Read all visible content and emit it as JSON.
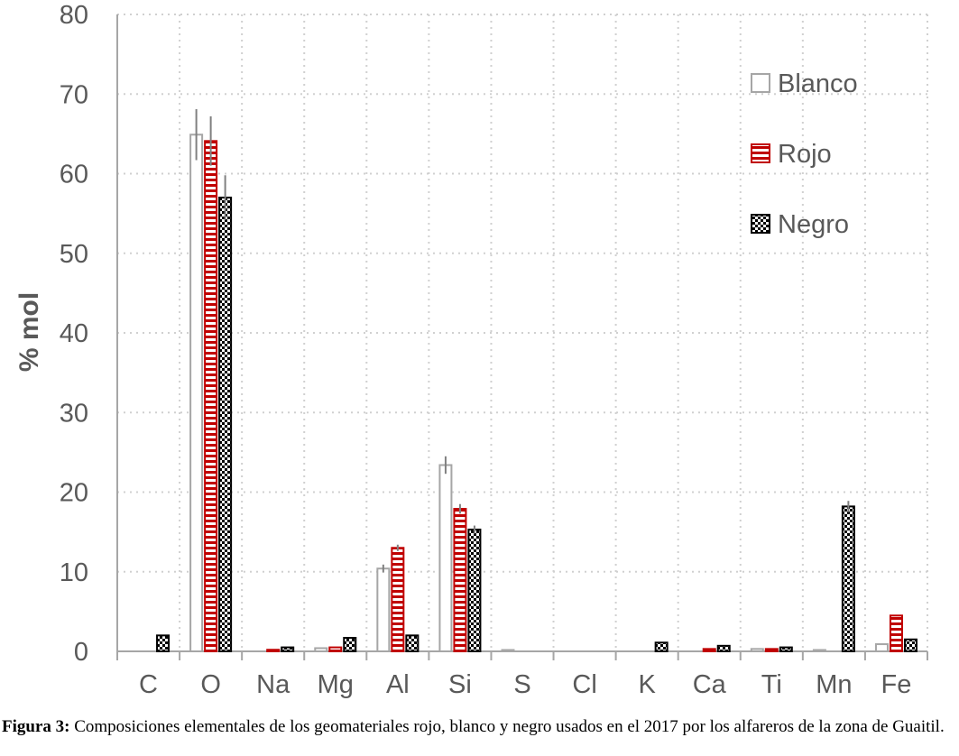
{
  "chart_data": {
    "type": "bar",
    "ylabel": "% mol",
    "xlabel": "",
    "ylim": [
      0,
      80
    ],
    "yticks": [
      0,
      10,
      20,
      30,
      40,
      50,
      60,
      70,
      80
    ],
    "grid": "dotted, horizontal and vertical",
    "legend_position": "top-right",
    "categories": [
      "C",
      "O",
      "Na",
      "Mg",
      "Al",
      "Si",
      "S",
      "Cl",
      "K",
      "Ca",
      "Ti",
      "Mn",
      "Fe"
    ],
    "series": [
      {
        "name": "Blanco",
        "color": "#a6a6a6",
        "pattern": "hollow",
        "values": [
          0,
          64.9,
          0,
          0.4,
          10.4,
          23.4,
          0.1,
          0,
          0,
          0,
          0.3,
          0.1,
          0.9
        ],
        "errors": [
          0,
          3.2,
          0,
          0,
          0.5,
          1.1,
          0,
          0,
          0,
          0,
          0,
          0,
          0
        ]
      },
      {
        "name": "Rojo",
        "color": "#c00000",
        "pattern": "horizontal-stripes",
        "values": [
          0,
          64.1,
          0.2,
          0.5,
          13.0,
          17.9,
          0,
          0,
          0,
          0.3,
          0.3,
          0,
          4.5
        ],
        "errors": [
          0,
          3.1,
          0,
          0,
          0.4,
          0.6,
          0,
          0,
          0,
          0,
          0,
          0,
          0
        ]
      },
      {
        "name": "Negro",
        "color": "#000000",
        "pattern": "checker",
        "values": [
          2.0,
          57.0,
          0.5,
          1.7,
          2.0,
          15.3,
          0,
          0,
          1.1,
          0.7,
          0.5,
          18.2,
          1.5
        ],
        "errors": [
          0,
          2.8,
          0,
          0,
          0,
          0.5,
          0,
          0,
          0,
          0,
          0,
          0.7,
          0
        ]
      }
    ]
  },
  "caption": {
    "label": "Figura 3:",
    "text": " Composiciones elementales de los geomateriales rojo, blanco y negro usados en el 2017 por los alfareros de la zona de Guaitil."
  }
}
